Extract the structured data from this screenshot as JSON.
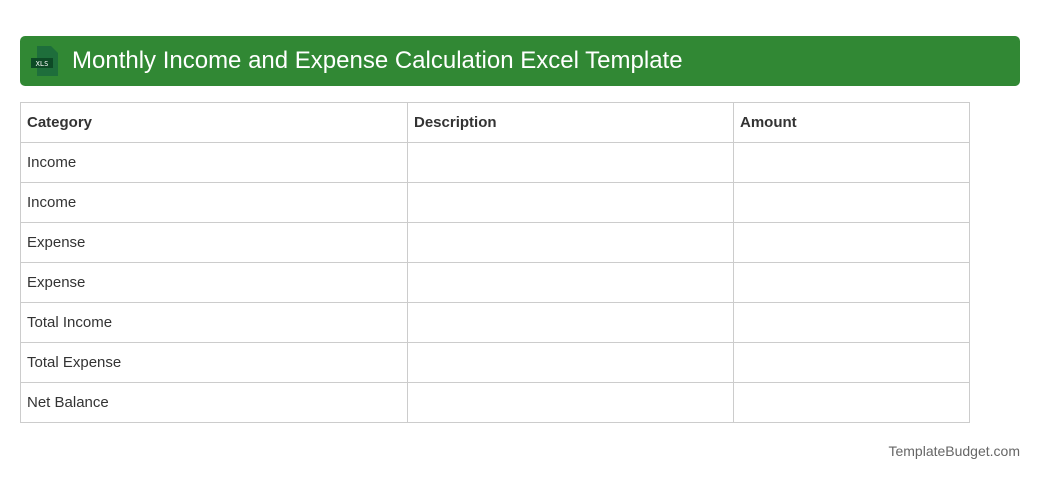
{
  "header": {
    "title": "Monthly Income and Expense Calculation Excel Template",
    "icon": "xls-file-icon",
    "icon_text": "XLS",
    "color": "#318834"
  },
  "table": {
    "columns": [
      "Category",
      "Description",
      "Amount"
    ],
    "rows": [
      [
        "Income",
        "",
        ""
      ],
      [
        "Income",
        "",
        ""
      ],
      [
        "Expense",
        "",
        ""
      ],
      [
        "Expense",
        "",
        ""
      ],
      [
        "Total Income",
        "",
        ""
      ],
      [
        "Total Expense",
        "",
        ""
      ],
      [
        "Net Balance",
        "",
        ""
      ]
    ]
  },
  "footer": "TemplateBudget.com"
}
